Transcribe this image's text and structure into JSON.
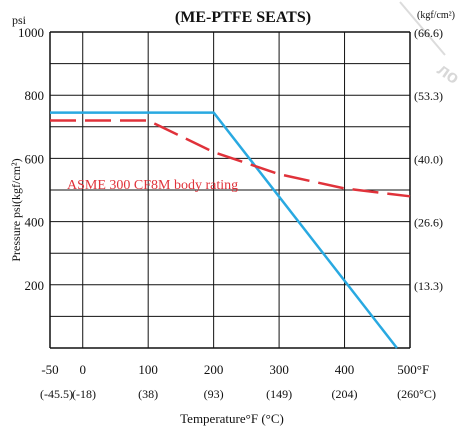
{
  "chart_data": {
    "type": "line",
    "title": "(ME-PTFE  SEATS)",
    "watermark": "ло",
    "y_unit_left": "psi",
    "y_unit_right": "(kgf/cm²)",
    "ylabel": "Pressure  psi(kgf/cm²)",
    "xlabel": "Temperature°F (°C)",
    "xlim": [
      -50,
      500
    ],
    "ylim": [
      0,
      1000
    ],
    "grid": true,
    "x_ticks_f": [
      "-50",
      "0",
      "100",
      "200",
      "300",
      "400",
      "500°F"
    ],
    "x_ticks_c": [
      "(-45.5)",
      "(-18)",
      "(38)",
      "(93)",
      "(149)",
      "(204)",
      "(260°C)"
    ],
    "y_ticks_left": [
      "1000",
      "800",
      "600",
      "400",
      "200"
    ],
    "y_ticks_right": [
      "(66.6)",
      "(53.3)",
      "(40.0)",
      "(26.6)",
      "(13.3)"
    ],
    "annotation": "ASME 300 CF8M body rating",
    "series": [
      {
        "style": "solid",
        "color": "#29a9e1",
        "x": [
          -50,
          200,
          480
        ],
        "y": [
          745,
          745,
          0
        ]
      },
      {
        "name": "ASME 300 CF8M body rating",
        "style": "dashed",
        "color": "#e0323a",
        "x": [
          -50,
          100,
          200,
          300,
          400,
          500
        ],
        "y": [
          720,
          720,
          620,
          550,
          505,
          480
        ]
      }
    ]
  }
}
